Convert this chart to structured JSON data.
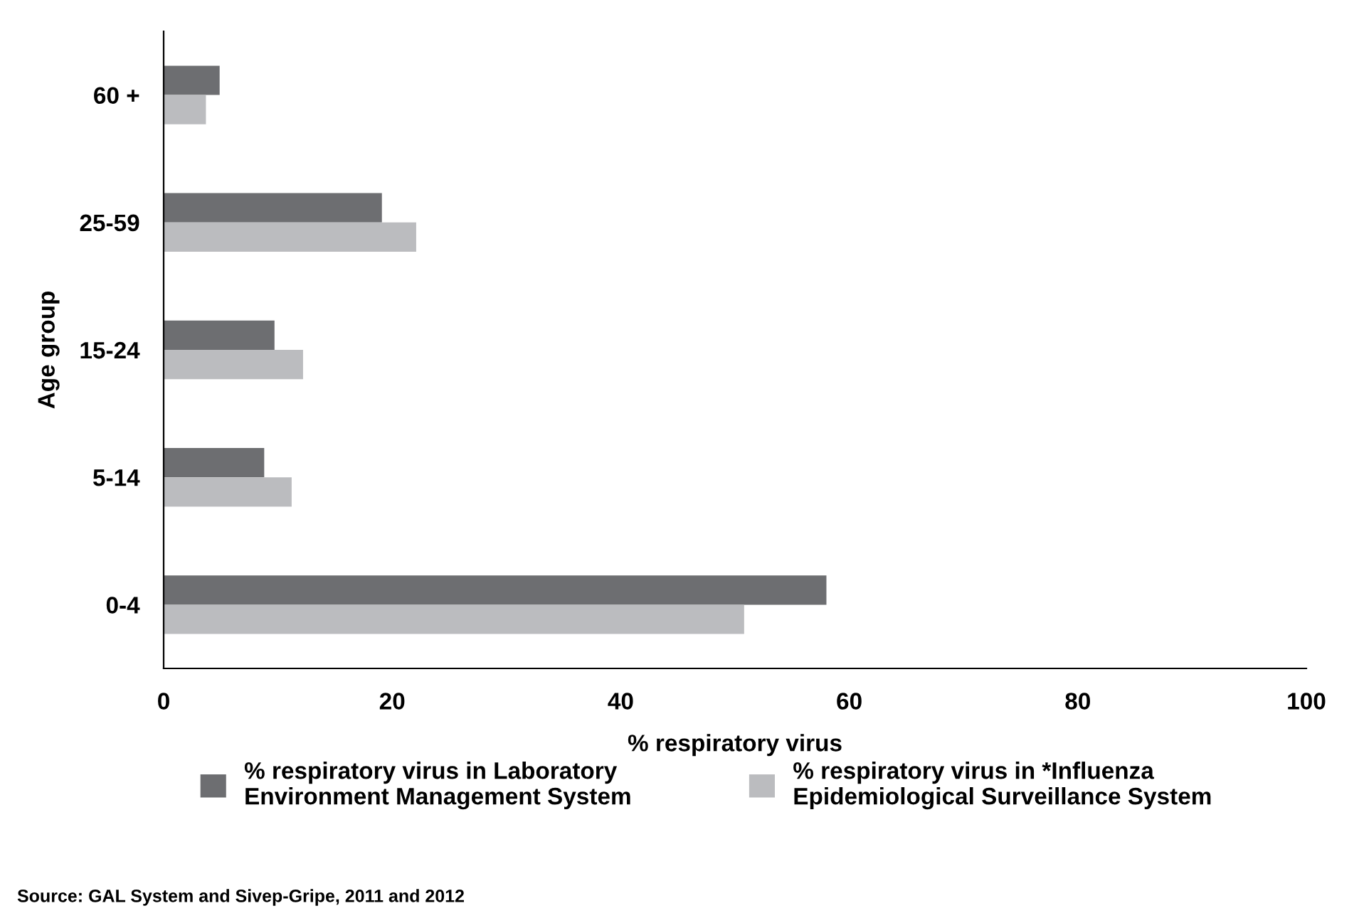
{
  "chart_data": {
    "type": "bar",
    "orientation": "horizontal",
    "xlabel": "% respiratory virus",
    "ylabel": "Age group",
    "categories": [
      "60 +",
      "25-59",
      "15-24",
      "5-14",
      "0-4"
    ],
    "series": [
      {
        "name": "% respiratory virus in Laboratory\nEnvironment Management System",
        "color": "#6d6e71",
        "values": [
          4.9,
          19.1,
          9.7,
          8.8,
          58.0
        ]
      },
      {
        "name": "% respiratory virus in *Influenza\nEpidemiological Surveillance System",
        "color": "#bbbcbf",
        "values": [
          3.7,
          22.1,
          12.2,
          11.2,
          50.8
        ]
      }
    ],
    "xlim": [
      0,
      100
    ],
    "xticks": [
      0,
      20,
      40,
      60,
      80,
      100
    ],
    "legend": "bottom",
    "annotations": [
      "Source: GAL System and Sivep-Gripe, 2011 and 2012"
    ]
  }
}
